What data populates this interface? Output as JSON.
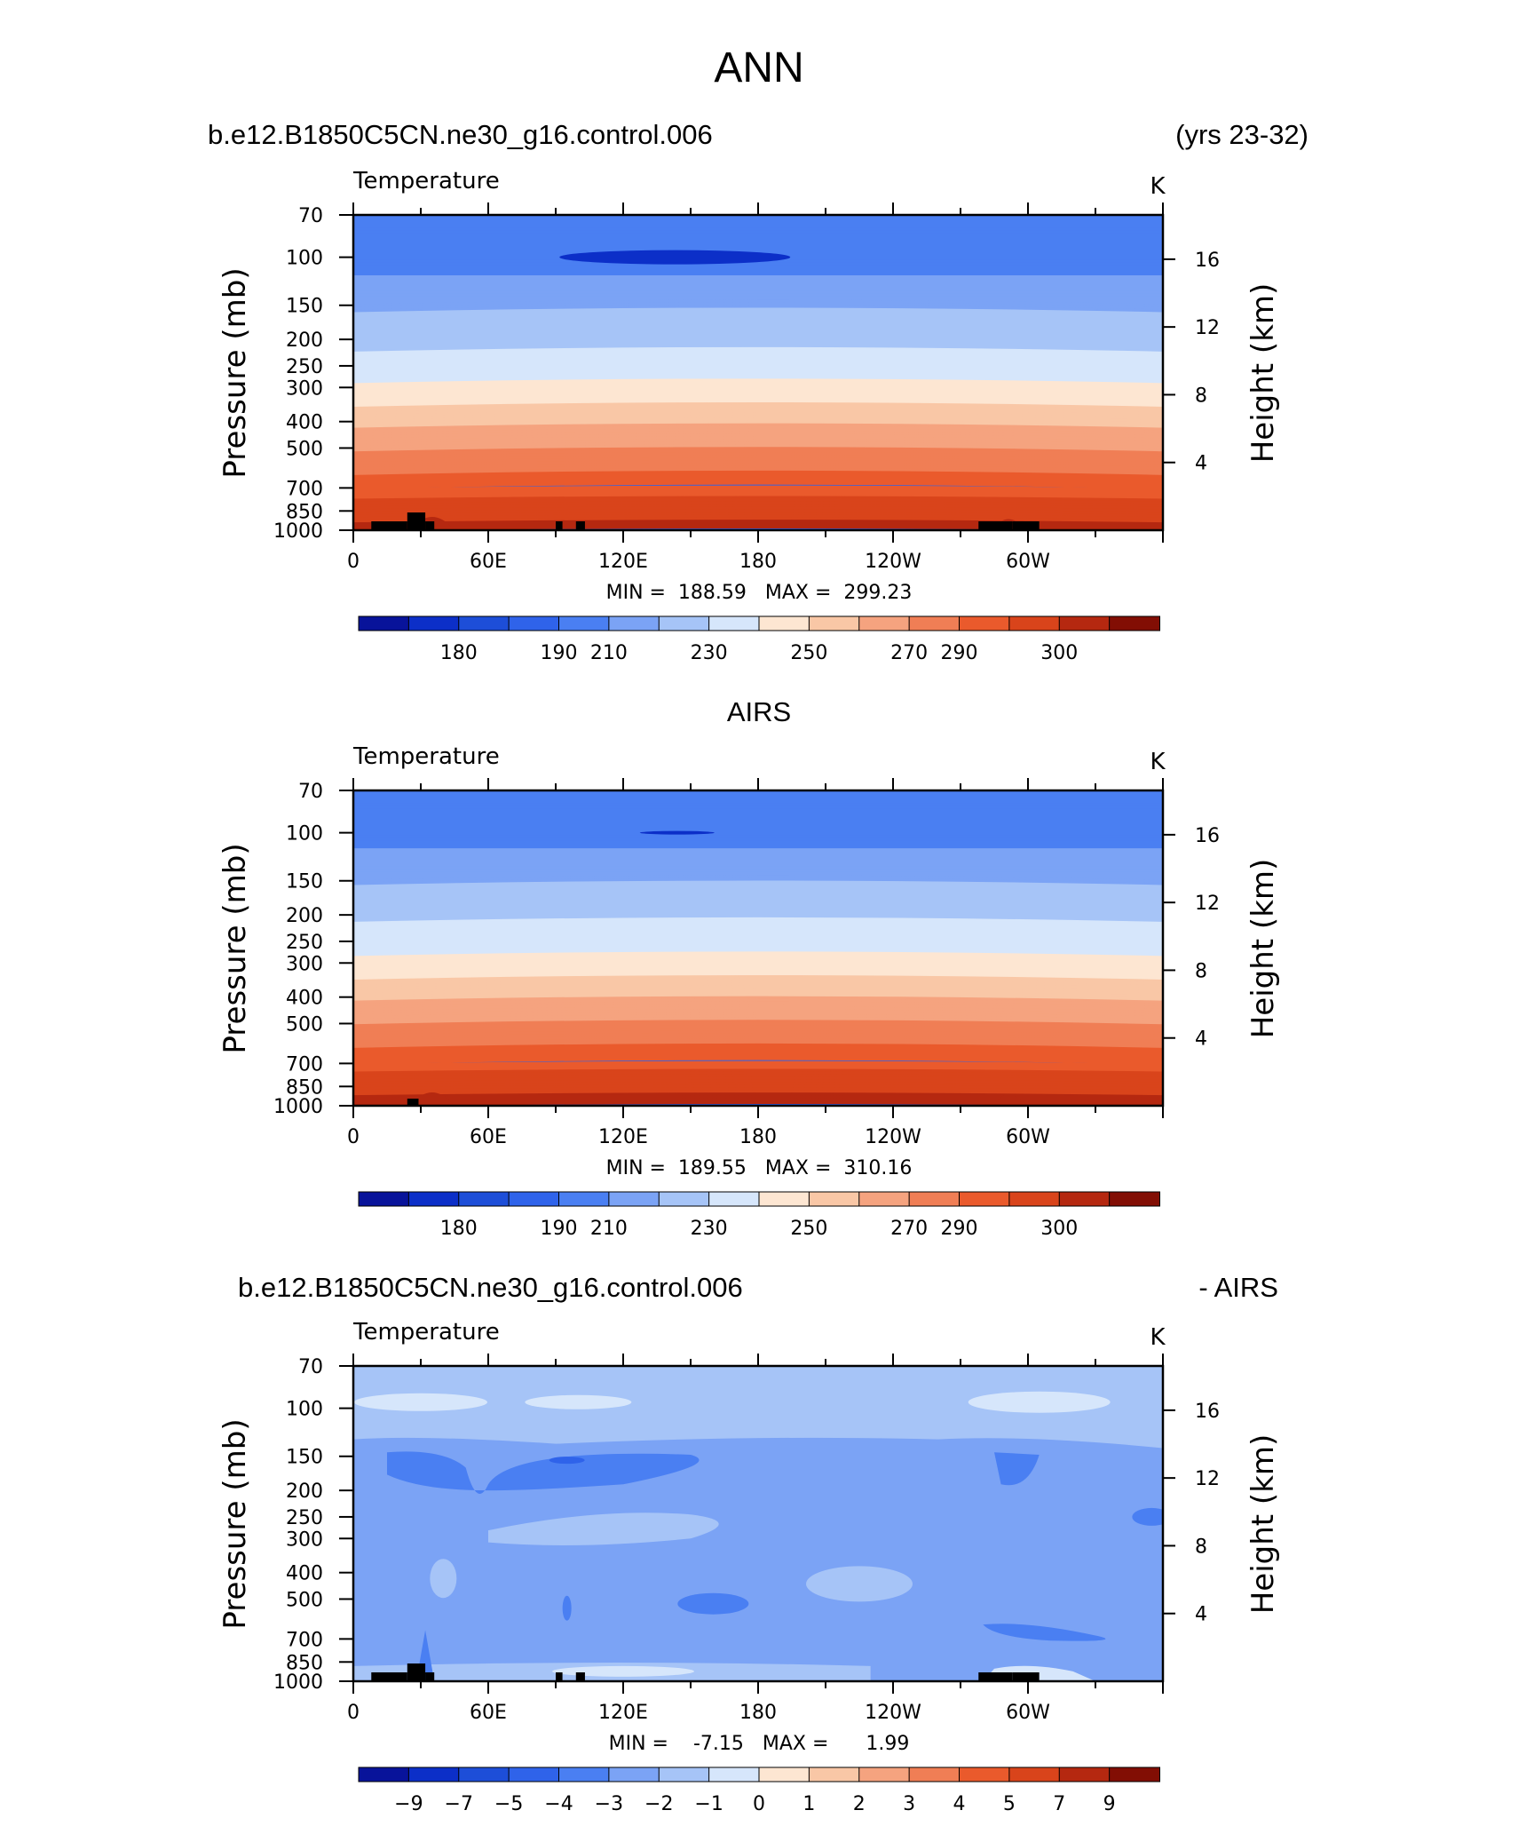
{
  "page_title": "ANN",
  "header_left": "b.e12.B1850C5CN.ne30_g16.control.006",
  "header_right": "(yrs 23-32)",
  "middle_title": "AIRS",
  "diff_header_left": "b.e12.B1850C5CN.ne30_g16.control.006",
  "diff_header_right": "- AIRS",
  "chart_data": [
    {
      "type": "heatmap",
      "title": "Temperature",
      "units": "K",
      "ylabel": "Pressure (mb)",
      "y2label": "Height (km)",
      "xticks": [
        "0",
        "60E",
        "120E",
        "180",
        "120W",
        "60W"
      ],
      "yticks": [
        "70",
        "100",
        "150",
        "200",
        "250",
        "300",
        "400",
        "500",
        "700",
        "850",
        "1000"
      ],
      "y2ticks": [
        "16",
        "12",
        "8",
        "4"
      ],
      "stats_text": "MIN =  188.59   MAX =  299.23",
      "min": 188.59,
      "max": 299.23,
      "levels_mb": [
        70,
        100,
        150,
        200,
        250,
        300,
        400,
        500,
        700,
        850,
        1000
      ],
      "temperature_K": [
        199,
        195,
        208,
        217,
        224,
        232,
        247,
        259,
        276,
        285,
        293
      ],
      "colorbar_labels": [
        "180",
        "190",
        "210",
        "230",
        "250",
        "270",
        "290",
        "300"
      ]
    },
    {
      "type": "heatmap",
      "title": "Temperature",
      "units": "K",
      "ylabel": "Pressure (mb)",
      "y2label": "Height (km)",
      "xticks": [
        "0",
        "60E",
        "120E",
        "180",
        "120W",
        "60W"
      ],
      "yticks": [
        "70",
        "100",
        "150",
        "200",
        "250",
        "300",
        "400",
        "500",
        "700",
        "850",
        "1000"
      ],
      "y2ticks": [
        "16",
        "12",
        "8",
        "4"
      ],
      "stats_text": "MIN =  189.55   MAX =  310.16",
      "min": 189.55,
      "max": 310.16,
      "levels_mb": [
        70,
        100,
        150,
        200,
        250,
        300,
        400,
        500,
        700,
        850,
        1000
      ],
      "temperature_K": [
        199,
        196,
        209,
        218,
        225,
        233,
        248,
        260,
        277,
        286,
        295
      ],
      "colorbar_labels": [
        "180",
        "190",
        "210",
        "230",
        "250",
        "270",
        "290",
        "300"
      ]
    },
    {
      "type": "heatmap",
      "title": "Temperature",
      "units": "K",
      "ylabel": "Pressure (mb)",
      "y2label": "Height (km)",
      "xticks": [
        "0",
        "60E",
        "120E",
        "180",
        "120W",
        "60W"
      ],
      "yticks": [
        "70",
        "100",
        "150",
        "200",
        "250",
        "300",
        "400",
        "500",
        "700",
        "850",
        "1000"
      ],
      "y2ticks": [
        "16",
        "12",
        "8",
        "4"
      ],
      "stats_text": "MIN =    -7.15   MAX =      1.99",
      "min": -7.15,
      "max": 1.99,
      "colorbar_labels": [
        "-9",
        "-7",
        "-5",
        "-4",
        "-3",
        "-2",
        "-1",
        "0",
        "1",
        "2",
        "3",
        "4",
        "5",
        "7",
        "9"
      ]
    }
  ],
  "colors": {
    "temp_scale": [
      "#08139a",
      "#0c2fc8",
      "#1d4ed8",
      "#2f63ea",
      "#4a7ff2",
      "#7ba3f5",
      "#a6c4f7",
      "#d6e6fb",
      "#fde6d2",
      "#f9c7a6",
      "#f5a37f",
      "#f07e55",
      "#ea5a2c",
      "#d9441b",
      "#b52810",
      "#820e04"
    ],
    "diff_scale": [
      "#08139a",
      "#0c2fc8",
      "#1d4ed8",
      "#2f63ea",
      "#4a7ff2",
      "#7ba3f5",
      "#a6c4f7",
      "#d6e6fb",
      "#fde6d2",
      "#f9c7a6",
      "#f5a37f",
      "#f07e55",
      "#ea5a2c",
      "#d9441b",
      "#b52810",
      "#820e04"
    ],
    "terrain": "#000000"
  }
}
